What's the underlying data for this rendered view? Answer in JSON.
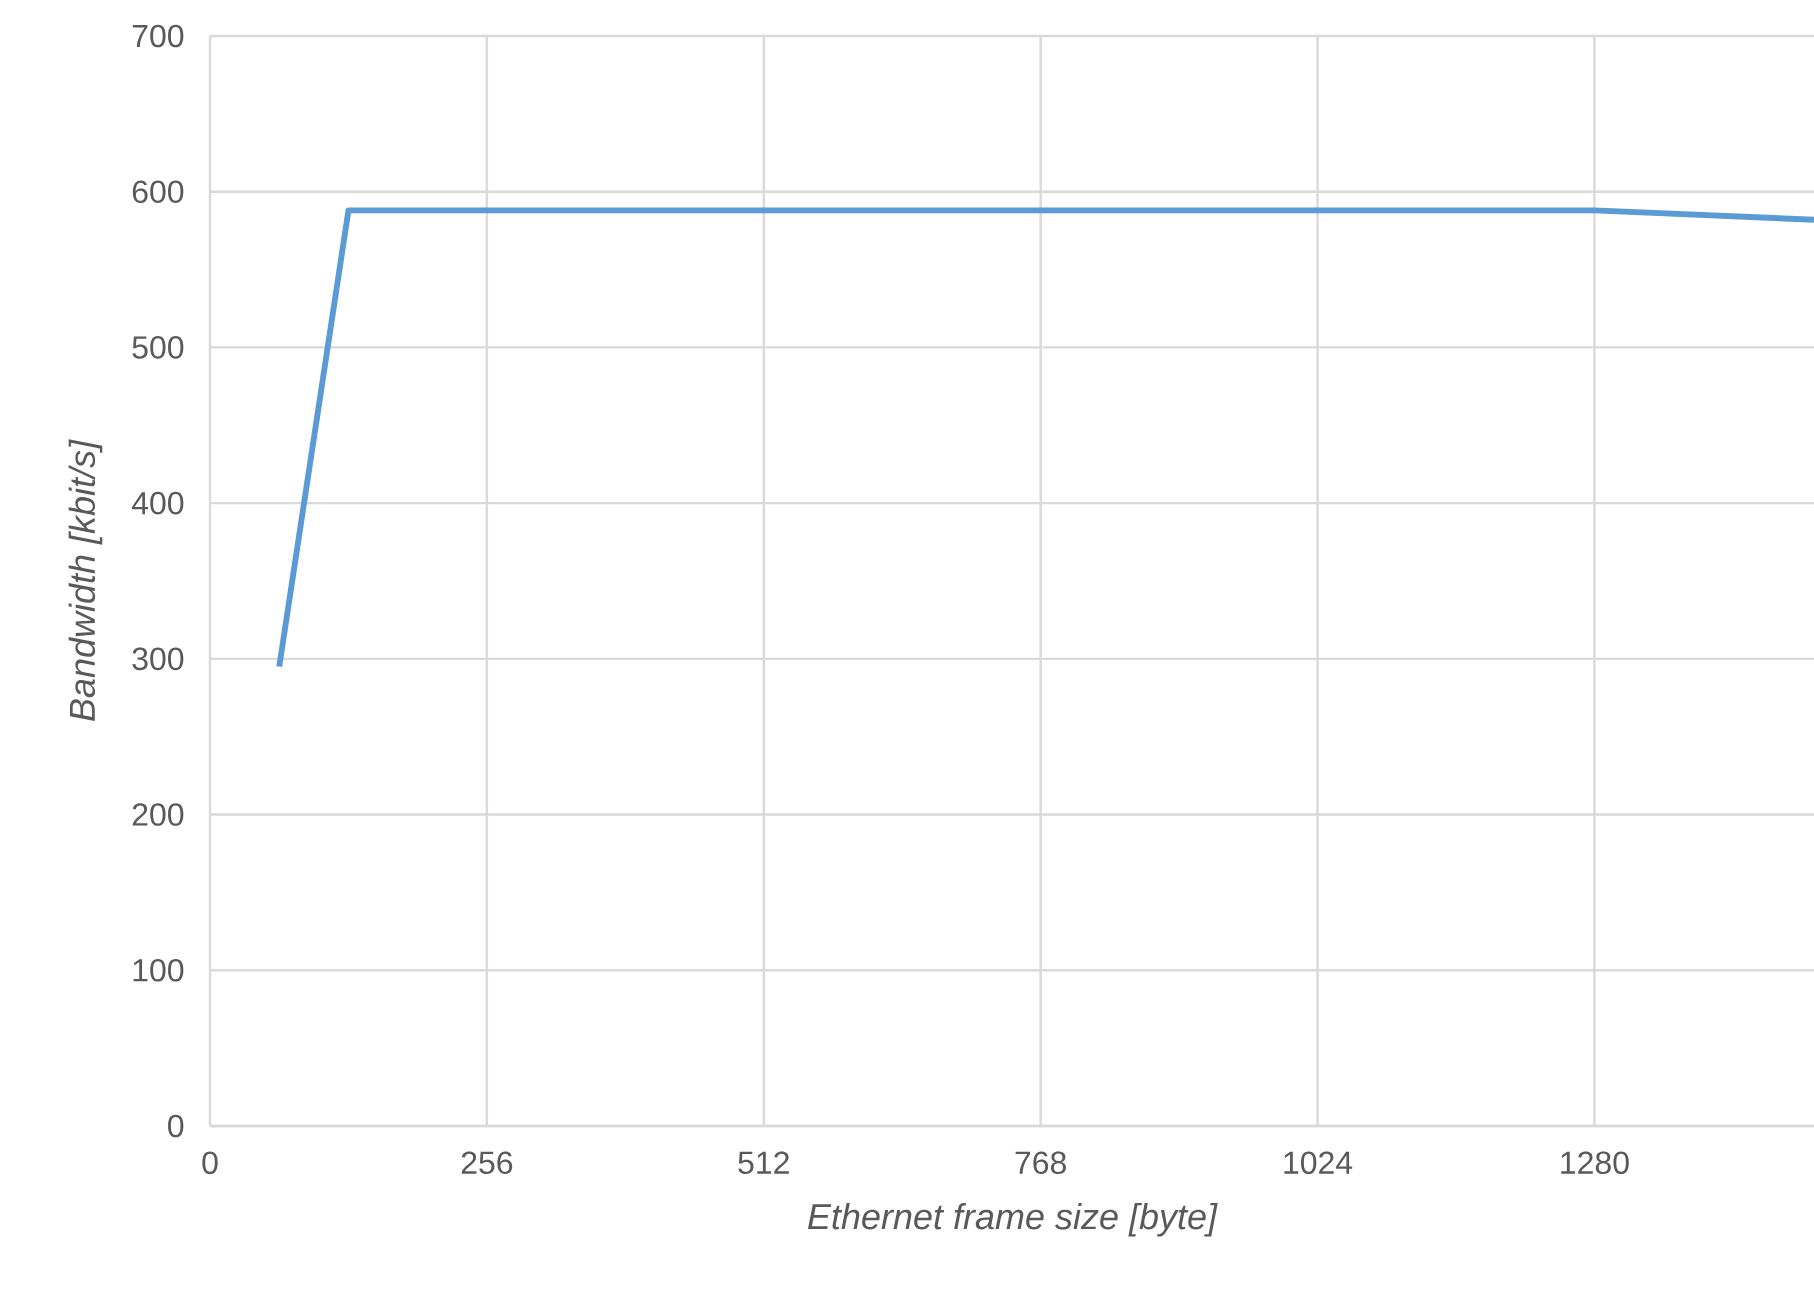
{
  "chart_data": {
    "type": "line",
    "xlabel": "Ethernet frame size [byte]",
    "ylabel": "Bandwidth [kbit/s]",
    "x": [
      64,
      128,
      1280,
      1483
    ],
    "series": [
      {
        "color": "#5b9bd5",
        "values": [
          295,
          588,
          588,
          582
        ]
      }
    ],
    "xlim": [
      0,
      1483
    ],
    "xticks": [
      0,
      256,
      512,
      768,
      1024,
      1280
    ],
    "ylim": [
      0,
      700
    ],
    "yticks": [
      0,
      100,
      200,
      300,
      400,
      500,
      600,
      700
    ],
    "grid": true,
    "marker": "none",
    "line_style": "solid"
  }
}
